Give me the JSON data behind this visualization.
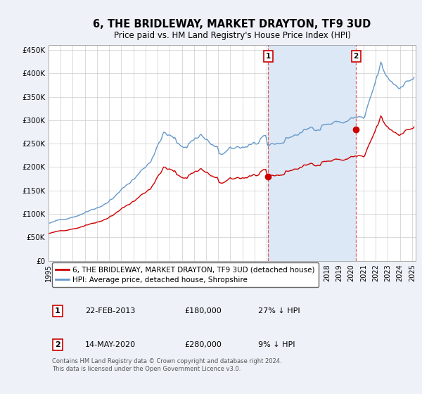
{
  "title": "6, THE BRIDLEWAY, MARKET DRAYTON, TF9 3UD",
  "subtitle": "Price paid vs. HM Land Registry's House Price Index (HPI)",
  "ylabel_ticks": [
    "£0",
    "£50K",
    "£100K",
    "£150K",
    "£200K",
    "£250K",
    "£300K",
    "£350K",
    "£400K",
    "£450K"
  ],
  "ytick_values": [
    0,
    50000,
    100000,
    150000,
    200000,
    250000,
    300000,
    350000,
    400000,
    450000
  ],
  "ylim": [
    0,
    460000
  ],
  "xlim_start": 1995.0,
  "xlim_end": 2025.3,
  "background_color": "#eef2f8",
  "plot_bg_color": "#ffffff",
  "shade_color": "#dce8f5",
  "hpi_color": "#6699cc",
  "price_color": "#cc0000",
  "sale1_date": 2013.12,
  "sale1_price": 180000,
  "sale1_label": "1",
  "sale2_date": 2020.37,
  "sale2_price": 280000,
  "sale2_label": "2",
  "vline_color": "#cc0000",
  "vline_alpha": 0.6,
  "legend_label_price": "6, THE BRIDLEWAY, MARKET DRAYTON, TF9 3UD (detached house)",
  "legend_label_hpi": "HPI: Average price, detached house, Shropshire",
  "table_row1": [
    "1",
    "22-FEB-2013",
    "£180,000",
    "27% ↓ HPI"
  ],
  "table_row2": [
    "2",
    "14-MAY-2020",
    "£280,000",
    "9% ↓ HPI"
  ],
  "footer": "Contains HM Land Registry data © Crown copyright and database right 2024.\nThis data is licensed under the Open Government Licence v3.0."
}
